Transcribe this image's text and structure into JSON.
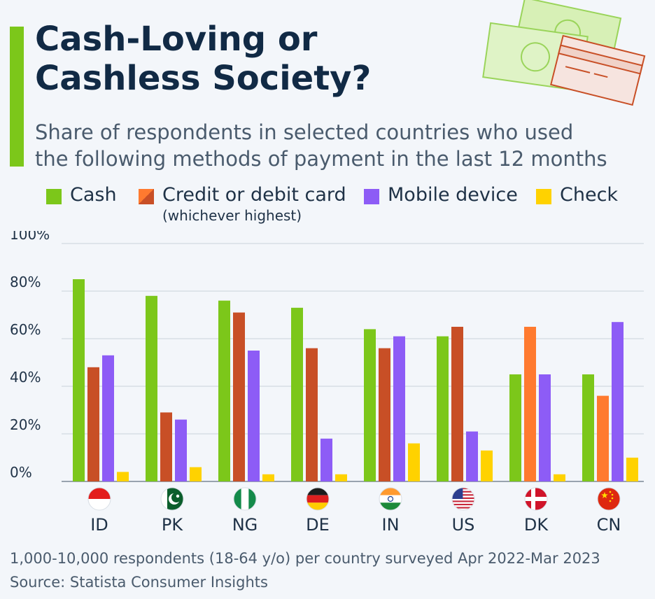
{
  "header": {
    "title_line1": "Cash-Loving or",
    "title_line2": "Cashless Society?",
    "subtitle_line1": "Share of respondents in selected countries who used",
    "subtitle_line2": "the following methods of payment in the last 12 months"
  },
  "legend": {
    "items": [
      {
        "label": "Cash",
        "color": "#7cc71a"
      },
      {
        "label": "Credit or debit card",
        "note": "(whichever highest)",
        "color": "#c84f26",
        "color_alt": "#ff7a2f"
      },
      {
        "label": "Mobile device",
        "color": "#8d5cf6"
      },
      {
        "label": "Check",
        "color": "#ffd200"
      }
    ]
  },
  "chart_data": {
    "type": "bar",
    "categories": [
      "ID",
      "PK",
      "NG",
      "DE",
      "IN",
      "US",
      "DK",
      "CN"
    ],
    "category_flags": [
      "flag-indonesia-icon",
      "flag-pakistan-icon",
      "flag-nigeria-icon",
      "flag-germany-icon",
      "flag-india-icon",
      "flag-usa-icon",
      "flag-denmark-icon",
      "flag-china-icon"
    ],
    "series": [
      {
        "name": "Cash",
        "values": [
          85,
          78,
          76,
          73,
          64,
          61,
          45,
          45
        ],
        "color": "#7cc71a"
      },
      {
        "name": "Credit or debit card",
        "values": [
          48,
          29,
          71,
          56,
          56,
          65,
          65,
          36
        ],
        "color": "#c84f26",
        "alt_color": "#ff7a2f",
        "alt_color_categories": [
          "DK",
          "CN"
        ]
      },
      {
        "name": "Mobile device",
        "values": [
          53,
          26,
          55,
          18,
          61,
          21,
          45,
          67
        ],
        "color": "#8d5cf6"
      },
      {
        "name": "Check",
        "values": [
          4,
          6,
          3,
          3,
          16,
          13,
          3,
          10
        ],
        "color": "#ffd200"
      }
    ],
    "yticks": [
      "0%",
      "20%",
      "40%",
      "60%",
      "80%",
      "100%"
    ],
    "ylim": [
      0,
      100
    ],
    "grid": true,
    "legend_position": "top"
  },
  "footer": {
    "note": "1,000-10,000 respondents (18-64 y/o) per country surveyed Apr 2022-Mar 2023",
    "source": "Source: Statista Consumer Insights"
  }
}
